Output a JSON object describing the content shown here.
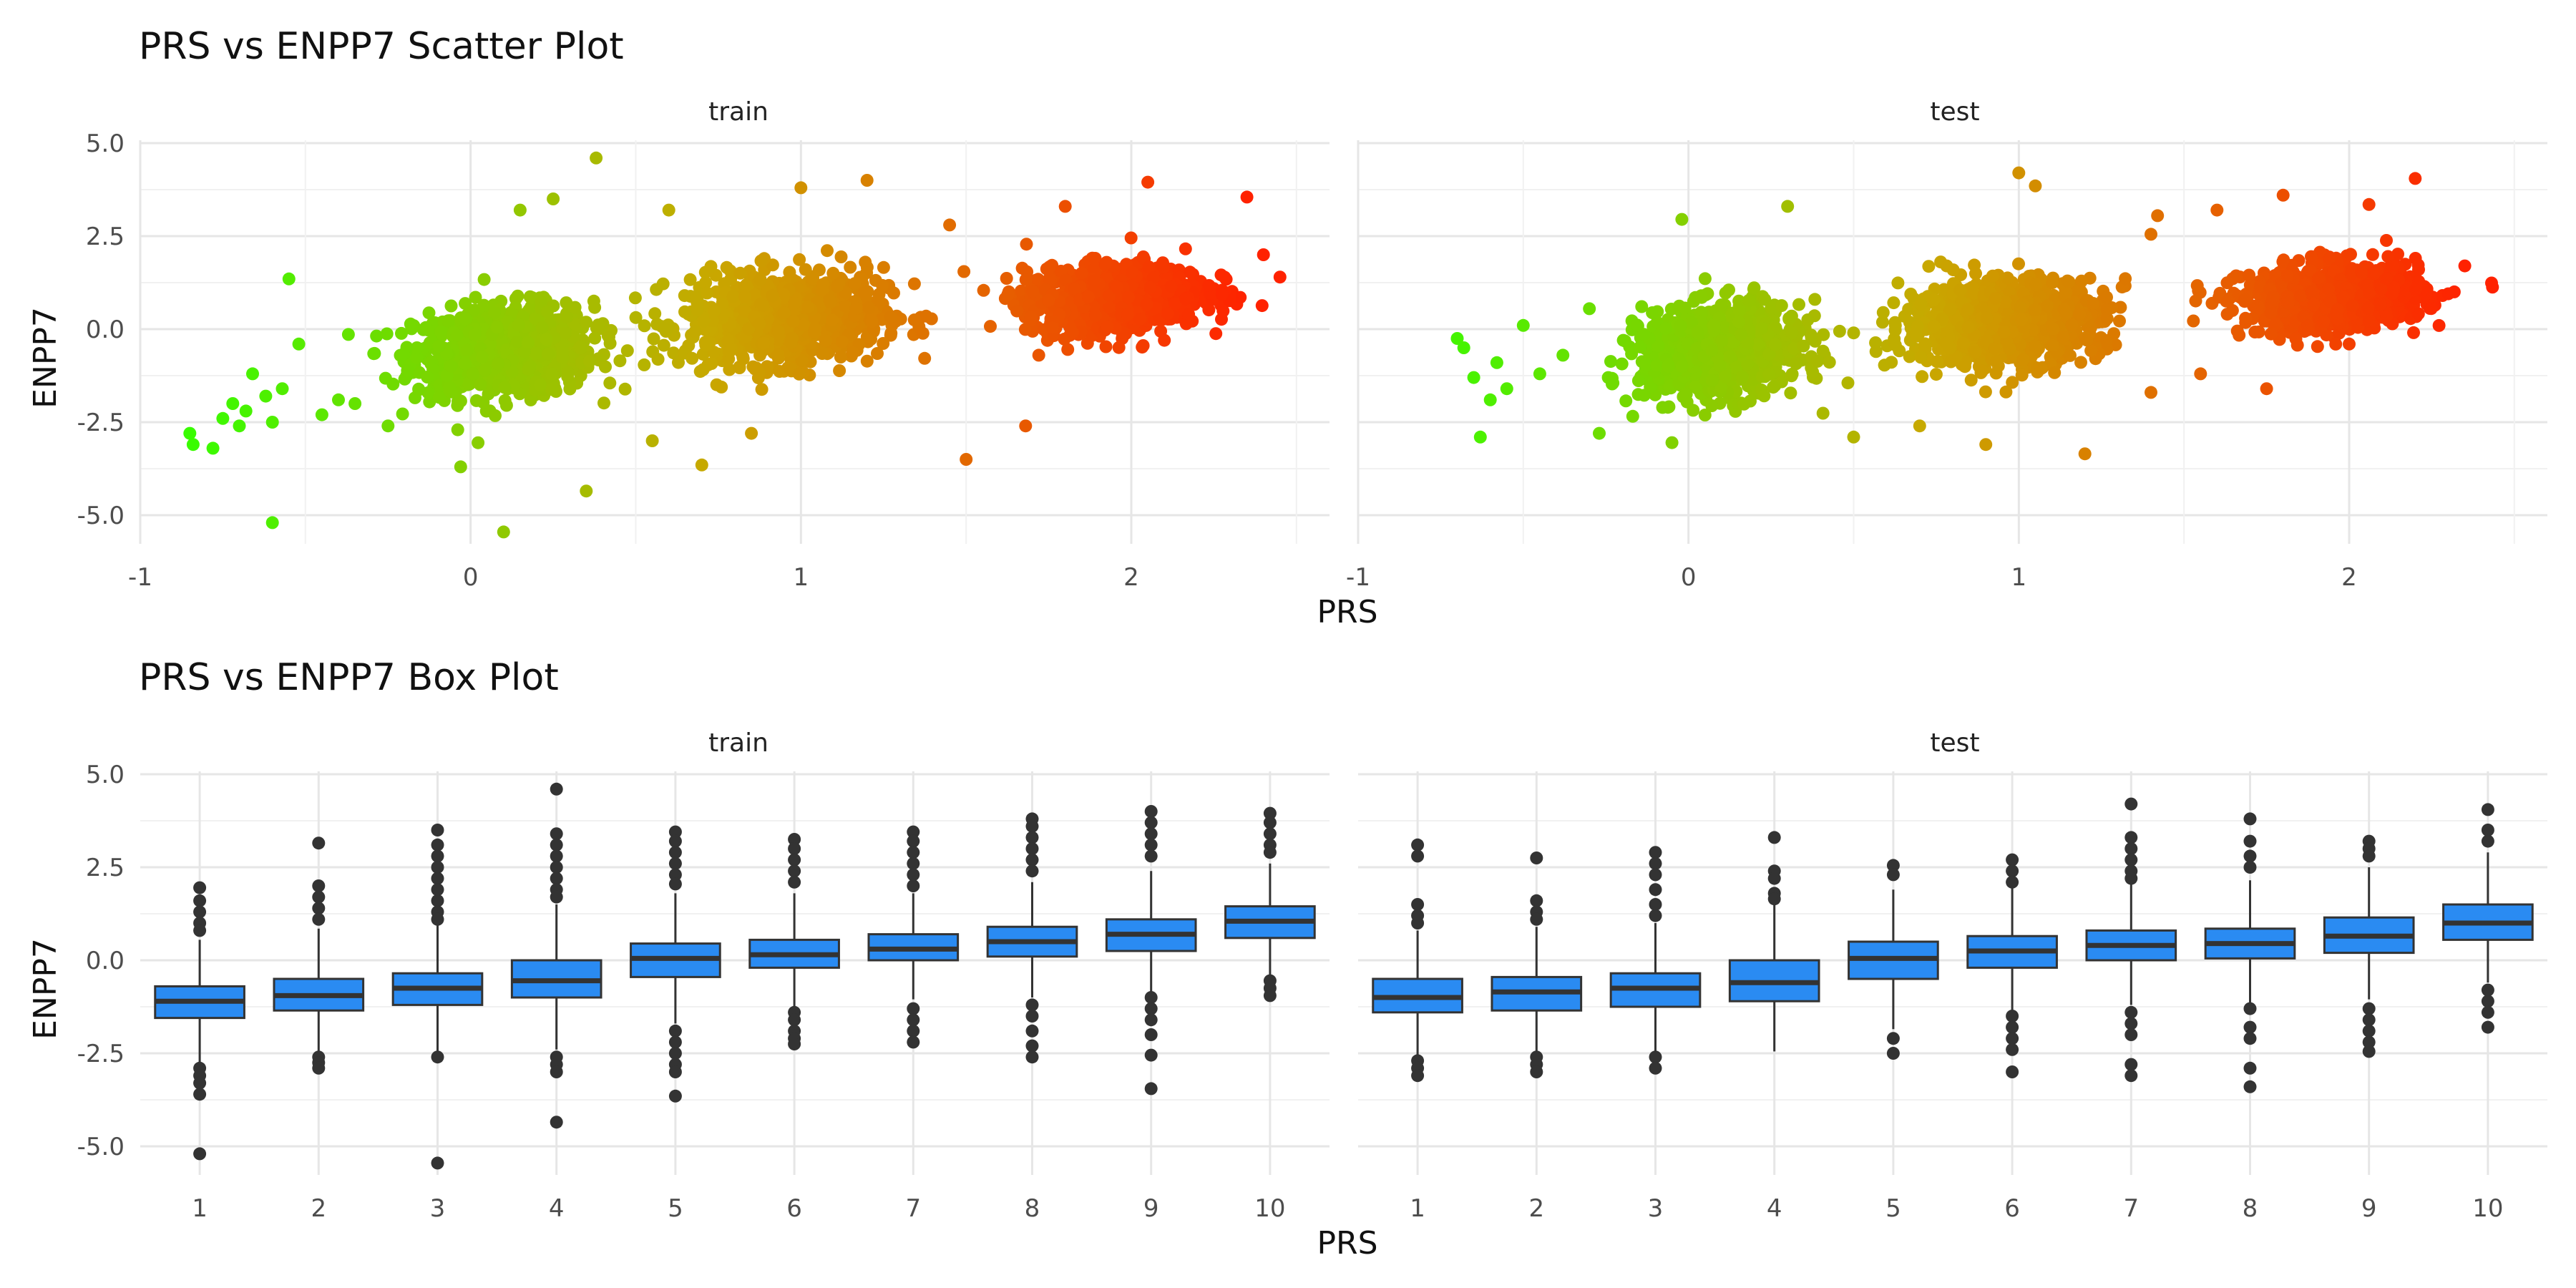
{
  "chart_data": [
    {
      "type": "scatter",
      "title": "PRS vs ENPP7 Scatter Plot",
      "xlabel": "PRS",
      "ylabel": "ENPP7",
      "xlim": [
        -1,
        2.6
      ],
      "ylim": [
        -6,
        5
      ],
      "x_ticks": [
        "-1",
        "0",
        "1",
        "2"
      ],
      "y_ticks": [
        "5.0",
        "2.5",
        "0.0",
        "-2.5",
        "-5.0"
      ],
      "grid": true,
      "color_gradient": {
        "low": "#33ff00",
        "mid": "#c8a800",
        "high": "#ff2200",
        "range": [
          -0.9,
          2.35
        ]
      },
      "panels": [
        {
          "label": "train",
          "clusters": [
            {
              "x_center": 0.1,
              "x_spread": 0.18,
              "y_center": -0.6,
              "y_spread": 0.75
            },
            {
              "x_center": 0.95,
              "x_spread": 0.2,
              "y_center": 0.3,
              "y_spread": 0.75
            },
            {
              "x_center": 1.95,
              "x_spread": 0.18,
              "y_center": 0.85,
              "y_spread": 0.55
            }
          ],
          "points": [
            [
              -0.85,
              -2.8
            ],
            [
              -0.84,
              -3.1
            ],
            [
              -0.78,
              -3.2
            ],
            [
              -0.75,
              -2.4
            ],
            [
              -0.72,
              -2.0
            ],
            [
              -0.7,
              -2.6
            ],
            [
              -0.68,
              -2.2
            ],
            [
              -0.66,
              -1.2
            ],
            [
              -0.62,
              -1.8
            ],
            [
              -0.6,
              -2.5
            ],
            [
              -0.57,
              -1.6
            ],
            [
              -0.55,
              1.35
            ],
            [
              -0.52,
              -0.4
            ],
            [
              -0.6,
              -5.2
            ],
            [
              -0.45,
              -2.3
            ],
            [
              -0.4,
              -1.9
            ],
            [
              -0.35,
              -2.0
            ],
            [
              -0.25,
              -2.6
            ],
            [
              0.1,
              -5.45
            ],
            [
              0.35,
              -4.35
            ],
            [
              0.38,
              4.6
            ],
            [
              -0.03,
              -3.7
            ],
            [
              0.55,
              -3.0
            ],
            [
              0.7,
              -3.65
            ],
            [
              0.85,
              -2.8
            ],
            [
              0.6,
              3.2
            ],
            [
              1.0,
              3.8
            ],
            [
              1.2,
              4.0
            ],
            [
              1.5,
              -3.5
            ],
            [
              1.68,
              -2.6
            ],
            [
              1.8,
              3.3
            ],
            [
              2.05,
              3.95
            ],
            [
              2.35,
              3.55
            ],
            [
              2.45,
              1.4
            ],
            [
              2.4,
              2.0
            ],
            [
              2.1,
              -0.3
            ],
            [
              1.72,
              -0.7
            ],
            [
              1.45,
              2.8
            ],
            [
              0.25,
              3.5
            ],
            [
              0.15,
              3.2
            ]
          ]
        },
        {
          "label": "test",
          "clusters": [
            {
              "x_center": 0.1,
              "x_spread": 0.16,
              "y_center": -0.6,
              "y_spread": 0.75
            },
            {
              "x_center": 0.95,
              "x_spread": 0.2,
              "y_center": 0.2,
              "y_spread": 0.7
            },
            {
              "x_center": 1.95,
              "x_spread": 0.18,
              "y_center": 0.85,
              "y_spread": 0.55
            }
          ],
          "points": [
            [
              -0.7,
              -0.25
            ],
            [
              -0.68,
              -0.5
            ],
            [
              -0.65,
              -1.3
            ],
            [
              -0.63,
              -2.9
            ],
            [
              -0.6,
              -1.9
            ],
            [
              -0.58,
              -0.9
            ],
            [
              -0.55,
              -1.6
            ],
            [
              -0.5,
              0.1
            ],
            [
              -0.45,
              -1.2
            ],
            [
              -0.38,
              -0.7
            ],
            [
              -0.3,
              0.55
            ],
            [
              -0.27,
              -2.8
            ],
            [
              -0.05,
              -3.05
            ],
            [
              -0.02,
              2.95
            ],
            [
              0.3,
              3.3
            ],
            [
              0.5,
              -2.9
            ],
            [
              0.7,
              -2.6
            ],
            [
              0.9,
              -3.1
            ],
            [
              1.0,
              4.2
            ],
            [
              1.05,
              3.85
            ],
            [
              1.2,
              -3.35
            ],
            [
              1.4,
              2.55
            ],
            [
              1.42,
              3.05
            ],
            [
              1.6,
              3.2
            ],
            [
              1.8,
              3.6
            ],
            [
              2.06,
              3.35
            ],
            [
              2.2,
              4.05
            ],
            [
              2.3,
              0.95
            ],
            [
              2.35,
              1.7
            ],
            [
              1.55,
              -1.2
            ],
            [
              1.4,
              -1.7
            ],
            [
              1.75,
              -1.6
            ],
            [
              2.0,
              -0.4
            ],
            [
              0.5,
              -0.1
            ]
          ]
        }
      ]
    },
    {
      "type": "box",
      "title": "PRS vs ENPP7 Box Plot",
      "xlabel": "PRS",
      "ylabel": "ENPP7",
      "categories": [
        "1",
        "2",
        "3",
        "4",
        "5",
        "6",
        "7",
        "8",
        "9",
        "10"
      ],
      "ylim": [
        -6,
        5
      ],
      "y_ticks": [
        "5.0",
        "2.5",
        "0.0",
        "-2.5",
        "-5.0"
      ],
      "box_color": "#2a8bf2",
      "grid": true,
      "panels": [
        {
          "label": "train",
          "boxes": [
            {
              "q1": -1.55,
              "median": -1.1,
              "q3": -0.7,
              "whisker_low": -2.8,
              "whisker_high": 0.55,
              "outliers": [
                1.95,
                1.6,
                1.3,
                1.0,
                0.8,
                -2.9,
                -3.1,
                -3.3,
                -3.6,
                -5.2
              ]
            },
            {
              "q1": -1.35,
              "median": -0.95,
              "q3": -0.5,
              "whisker_low": -2.55,
              "whisker_high": 0.85,
              "outliers": [
                3.15,
                2.0,
                1.7,
                1.4,
                1.1,
                -2.6,
                -2.75,
                -2.9
              ]
            },
            {
              "q1": -1.2,
              "median": -0.75,
              "q3": -0.35,
              "whisker_low": -2.45,
              "whisker_high": 0.95,
              "outliers": [
                3.5,
                3.1,
                2.8,
                2.5,
                2.2,
                1.9,
                1.6,
                1.3,
                1.1,
                -2.6,
                -5.45
              ]
            },
            {
              "q1": -1.0,
              "median": -0.55,
              "q3": 0.0,
              "whisker_low": -2.4,
              "whisker_high": 1.5,
              "outliers": [
                4.6,
                3.4,
                3.1,
                2.8,
                2.5,
                2.2,
                1.9,
                1.7,
                -2.6,
                -2.8,
                -3.0,
                -4.35
              ]
            },
            {
              "q1": -0.45,
              "median": 0.05,
              "q3": 0.45,
              "whisker_low": -1.7,
              "whisker_high": 1.8,
              "outliers": [
                3.45,
                3.2,
                2.9,
                2.6,
                2.3,
                2.05,
                -1.9,
                -2.2,
                -2.5,
                -2.8,
                -3.0,
                -3.65
              ]
            },
            {
              "q1": -0.2,
              "median": 0.15,
              "q3": 0.55,
              "whisker_low": -1.3,
              "whisker_high": 1.8,
              "outliers": [
                3.25,
                3.0,
                2.7,
                2.4,
                2.1,
                -1.4,
                -1.6,
                -1.9,
                -2.1,
                -2.25
              ]
            },
            {
              "q1": 0.0,
              "median": 0.3,
              "q3": 0.7,
              "whisker_low": -1.05,
              "whisker_high": 1.8,
              "outliers": [
                3.45,
                3.2,
                2.9,
                2.6,
                2.3,
                2.0,
                -1.3,
                -1.6,
                -1.9,
                -2.2
              ]
            },
            {
              "q1": 0.1,
              "median": 0.5,
              "q3": 0.9,
              "whisker_low": -1.0,
              "whisker_high": 2.1,
              "outliers": [
                3.8,
                3.6,
                3.3,
                3.0,
                2.7,
                2.4,
                -1.2,
                -1.5,
                -1.9,
                -2.3,
                -2.6
              ]
            },
            {
              "q1": 0.25,
              "median": 0.7,
              "q3": 1.1,
              "whisker_low": -0.85,
              "whisker_high": 2.4,
              "outliers": [
                4.0,
                3.7,
                3.4,
                3.1,
                2.8,
                -1.0,
                -1.3,
                -1.6,
                -2.0,
                -2.55,
                -3.45
              ]
            },
            {
              "q1": 0.6,
              "median": 1.05,
              "q3": 1.45,
              "whisker_low": -0.4,
              "whisker_high": 2.6,
              "outliers": [
                3.95,
                3.7,
                3.4,
                3.1,
                2.9,
                -0.55,
                -0.75,
                -0.95
              ]
            }
          ]
        },
        {
          "label": "test",
          "boxes": [
            {
              "q1": -1.4,
              "median": -1.0,
              "q3": -0.5,
              "whisker_low": -2.6,
              "whisker_high": 0.8,
              "outliers": [
                3.1,
                2.8,
                1.5,
                1.2,
                1.0,
                -2.7,
                -2.9,
                -3.1
              ]
            },
            {
              "q1": -1.35,
              "median": -0.85,
              "q3": -0.45,
              "whisker_low": -2.5,
              "whisker_high": 0.9,
              "outliers": [
                2.75,
                1.6,
                1.3,
                1.1,
                -2.6,
                -2.8,
                -3.0
              ]
            },
            {
              "q1": -1.25,
              "median": -0.75,
              "q3": -0.35,
              "whisker_low": -2.5,
              "whisker_high": 1.0,
              "outliers": [
                2.9,
                2.6,
                2.3,
                1.9,
                1.5,
                1.2,
                -2.6,
                -2.9
              ]
            },
            {
              "q1": -1.1,
              "median": -0.6,
              "q3": 0.0,
              "whisker_low": -2.45,
              "whisker_high": 1.5,
              "outliers": [
                3.3,
                2.4,
                2.2,
                1.8,
                1.65
              ]
            },
            {
              "q1": -0.5,
              "median": 0.05,
              "q3": 0.5,
              "whisker_low": -1.85,
              "whisker_high": 1.9,
              "outliers": [
                2.55,
                2.3,
                -2.1,
                -2.5
              ]
            },
            {
              "q1": -0.2,
              "median": 0.25,
              "q3": 0.65,
              "whisker_low": -1.4,
              "whisker_high": 1.95,
              "outliers": [
                2.7,
                2.4,
                2.1,
                -1.5,
                -1.8,
                -2.1,
                -2.4,
                -3.0
              ]
            },
            {
              "q1": 0.0,
              "median": 0.4,
              "q3": 0.8,
              "whisker_low": -1.2,
              "whisker_high": 2.05,
              "outliers": [
                4.2,
                3.3,
                3.0,
                2.7,
                2.4,
                2.2,
                -1.4,
                -1.7,
                -2.0,
                -2.8,
                -3.1
              ]
            },
            {
              "q1": 0.05,
              "median": 0.45,
              "q3": 0.85,
              "whisker_low": -1.15,
              "whisker_high": 2.15,
              "outliers": [
                3.8,
                3.2,
                2.8,
                2.5,
                -1.3,
                -1.8,
                -2.1,
                -2.9,
                -3.4
              ]
            },
            {
              "q1": 0.2,
              "median": 0.65,
              "q3": 1.15,
              "whisker_low": -1.05,
              "whisker_high": 2.5,
              "outliers": [
                3.2,
                3.0,
                2.8,
                -1.3,
                -1.6,
                -1.9,
                -2.2,
                -2.45
              ]
            },
            {
              "q1": 0.55,
              "median": 1.0,
              "q3": 1.5,
              "whisker_low": -0.6,
              "whisker_high": 2.9,
              "outliers": [
                4.05,
                3.5,
                3.2,
                -0.8,
                -1.1,
                -1.4,
                -1.8
              ]
            }
          ]
        }
      ]
    }
  ]
}
